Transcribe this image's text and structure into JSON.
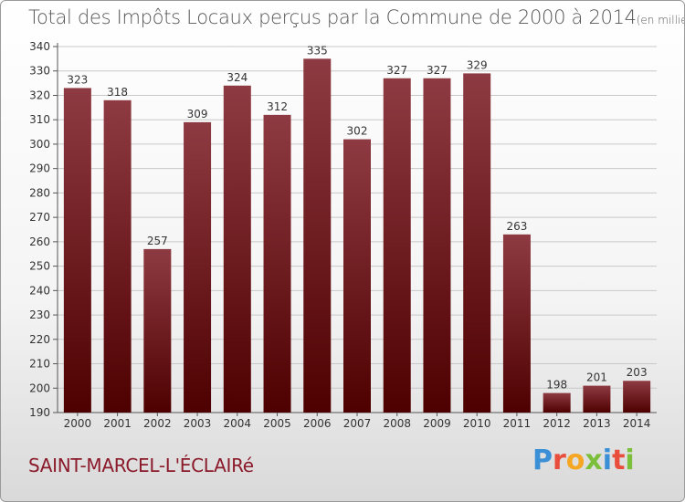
{
  "title": "Total des Impôts Locaux perçus par la Commune de 2000 à 2014",
  "title_unit": "(en milliers d'€)",
  "commune": "SAINT-MARCEL-L'ÉCLAIRé",
  "logo": {
    "letters": [
      "P",
      "r",
      "o",
      "x",
      "i",
      "t",
      "i"
    ],
    "colors": [
      "#3a8fd6",
      "#e94e3c",
      "#f5a623",
      "#7bbf3a",
      "#3a8fd6",
      "#e94e3c",
      "#7bbf3a"
    ]
  },
  "colors": {
    "bar_top": "#8e3a42",
    "bar_bottom": "#4e0000",
    "grid": "#c8c8c8",
    "axis": "#555555",
    "text": "#333333"
  },
  "chart_data": {
    "type": "bar",
    "title": "Total des Impôts Locaux perçus par la Commune de 2000 à 2014",
    "xlabel": "",
    "ylabel": "",
    "categories": [
      "2000",
      "2001",
      "2002",
      "2003",
      "2004",
      "2005",
      "2006",
      "2007",
      "2008",
      "2009",
      "2010",
      "2011",
      "2012",
      "2013",
      "2014"
    ],
    "values": [
      323,
      318,
      257,
      309,
      324,
      312,
      335,
      302,
      327,
      327,
      329,
      263,
      198,
      201,
      203
    ],
    "ylim": [
      190,
      340
    ],
    "yticks": [
      190,
      200,
      210,
      220,
      230,
      240,
      250,
      260,
      270,
      280,
      290,
      300,
      310,
      320,
      330,
      340
    ],
    "grid": true,
    "data_labels": true
  }
}
